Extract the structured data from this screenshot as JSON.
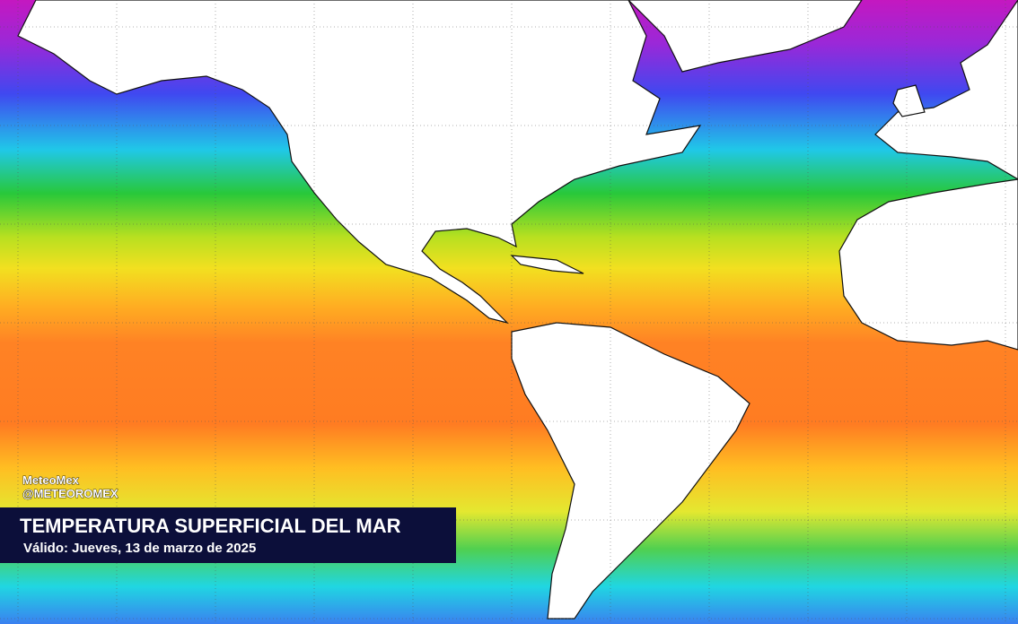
{
  "header": {
    "brand": "MeteoMex",
    "handle": "@METEOROMEX"
  },
  "caption": {
    "title": "TEMPERATURA SUPERFICIAL DEL MAR",
    "subtitle": "Válido: Jueves, 13 de marzo de 2025"
  }
}
